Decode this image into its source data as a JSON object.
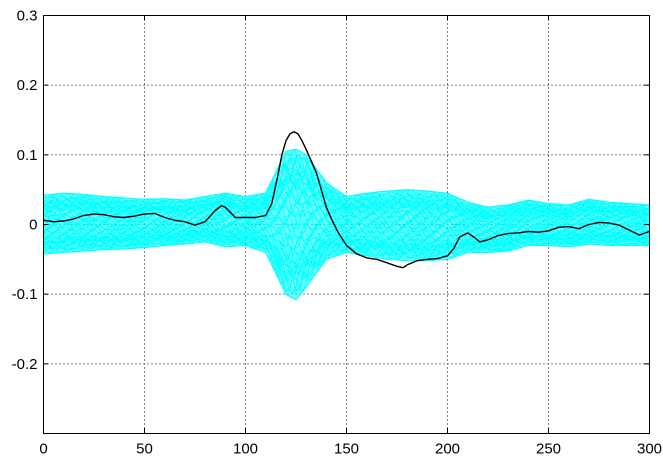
{
  "chart_data": {
    "type": "line",
    "title": "",
    "xlabel": "",
    "ylabel": "",
    "xlim": [
      0,
      300
    ],
    "ylim": [
      -0.3,
      0.3
    ],
    "xticks": [
      0,
      50,
      100,
      150,
      200,
      250,
      300
    ],
    "xtick_labels": [
      "0",
      "50",
      "100",
      "150",
      "200",
      "250",
      "300"
    ],
    "yticks": [
      -0.2,
      -0.1,
      0,
      0.1,
      0.2,
      0.3
    ],
    "ytick_labels": [
      "-0.2",
      "-0.1",
      "0",
      "0.1",
      "0.2",
      "0.3"
    ],
    "grid": true,
    "legend": "none",
    "colors": {
      "band": "#00ffff",
      "mean": "#000000",
      "axes": "#000000",
      "background": "#ffffff"
    },
    "series": [
      {
        "role": "upper-envelope",
        "x": [
          0,
          10,
          20,
          30,
          40,
          50,
          60,
          70,
          80,
          90,
          100,
          110,
          115,
          120,
          125,
          130,
          135,
          140,
          150,
          160,
          170,
          180,
          190,
          200,
          210,
          220,
          230,
          240,
          250,
          260,
          270,
          280,
          290,
          300
        ],
        "y": [
          0.042,
          0.045,
          0.043,
          0.04,
          0.038,
          0.036,
          0.037,
          0.035,
          0.04,
          0.045,
          0.04,
          0.045,
          0.075,
          0.105,
          0.108,
          0.1,
          0.08,
          0.06,
          0.04,
          0.045,
          0.048,
          0.05,
          0.048,
          0.045,
          0.032,
          0.025,
          0.028,
          0.035,
          0.03,
          0.028,
          0.036,
          0.032,
          0.03,
          0.028
        ]
      },
      {
        "role": "lower-envelope",
        "x": [
          0,
          10,
          20,
          30,
          40,
          50,
          60,
          70,
          80,
          90,
          100,
          110,
          115,
          120,
          125,
          130,
          135,
          140,
          150,
          160,
          170,
          180,
          190,
          200,
          210,
          220,
          230,
          240,
          250,
          260,
          270,
          280,
          290,
          300
        ],
        "y": [
          -0.042,
          -0.04,
          -0.038,
          -0.036,
          -0.035,
          -0.033,
          -0.03,
          -0.028,
          -0.025,
          -0.032,
          -0.03,
          -0.04,
          -0.07,
          -0.1,
          -0.108,
          -0.09,
          -0.07,
          -0.05,
          -0.04,
          -0.045,
          -0.05,
          -0.052,
          -0.052,
          -0.05,
          -0.04,
          -0.04,
          -0.038,
          -0.03,
          -0.03,
          -0.032,
          -0.028,
          -0.03,
          -0.03,
          -0.03
        ]
      },
      {
        "role": "mean-trace",
        "x": [
          0,
          5,
          10,
          15,
          20,
          25,
          30,
          35,
          40,
          45,
          50,
          55,
          60,
          65,
          70,
          75,
          80,
          85,
          88,
          90,
          95,
          100,
          105,
          110,
          113,
          116,
          118,
          120,
          122,
          124,
          126,
          128,
          130,
          132,
          135,
          138,
          140,
          143,
          146,
          150,
          155,
          160,
          165,
          170,
          175,
          178,
          180,
          185,
          190,
          195,
          200,
          203,
          206,
          210,
          213,
          216,
          220,
          225,
          230,
          235,
          240,
          245,
          250,
          255,
          260,
          265,
          270,
          275,
          280,
          285,
          290,
          295,
          300
        ],
        "y": [
          0.006,
          0.004,
          0.005,
          0.008,
          0.013,
          0.015,
          0.014,
          0.011,
          0.01,
          0.012,
          0.015,
          0.016,
          0.01,
          0.006,
          0.004,
          -0.001,
          0.004,
          0.02,
          0.027,
          0.025,
          0.01,
          0.01,
          0.01,
          0.013,
          0.03,
          0.07,
          0.1,
          0.12,
          0.13,
          0.133,
          0.13,
          0.12,
          0.108,
          0.095,
          0.075,
          0.045,
          0.025,
          0.005,
          -0.012,
          -0.03,
          -0.042,
          -0.048,
          -0.05,
          -0.055,
          -0.06,
          -0.062,
          -0.058,
          -0.052,
          -0.05,
          -0.049,
          -0.045,
          -0.035,
          -0.018,
          -0.012,
          -0.018,
          -0.025,
          -0.022,
          -0.016,
          -0.013,
          -0.012,
          -0.01,
          -0.011,
          -0.009,
          -0.004,
          -0.003,
          -0.006,
          0.0,
          0.003,
          0.002,
          -0.001,
          -0.008,
          -0.015,
          -0.01
        ]
      }
    ]
  }
}
